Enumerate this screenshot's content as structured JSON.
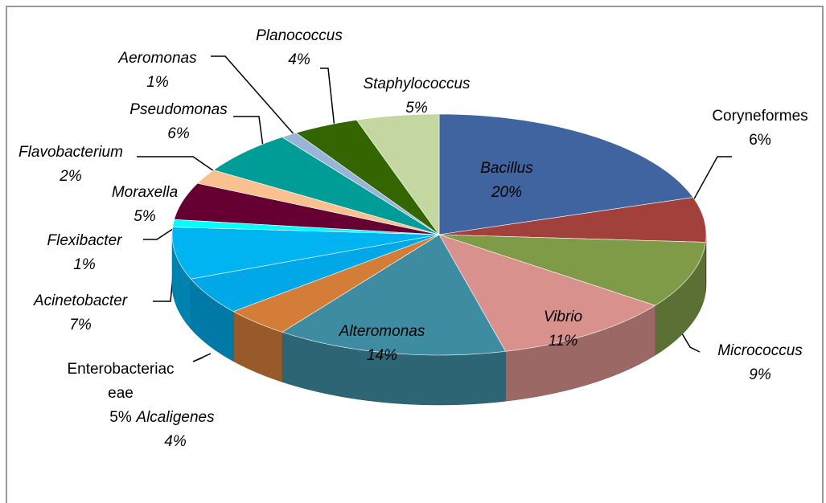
{
  "chart_data": {
    "type": "pie3d",
    "categories": [
      "Bacillus",
      "Coryneformes",
      "Micrococcus",
      "Vibrio",
      "Alteromonas",
      "Alcaligenes",
      "Enterobacteriac eae",
      "Acinetobacter",
      "Flexibacter",
      "Moraxella",
      "Flavobacterium",
      "Pseudomonas",
      "Aeromonas",
      "Planococcus",
      "Staphylococcus"
    ],
    "values": [
      20,
      6,
      9,
      11,
      14,
      4,
      5,
      7,
      1,
      5,
      2,
      6,
      1,
      4,
      5
    ],
    "value_labels": [
      "20%",
      "6%",
      "9%",
      "11%",
      "14%",
      "4%",
      "5%",
      "7%",
      "1%",
      "5%",
      "2%",
      "6%",
      "1%",
      "4%",
      "5%"
    ],
    "colors": [
      "#3f64a0",
      "#a2403c",
      "#7f9b48",
      "#d9918d",
      "#3e8ca2",
      "#d37d39",
      "#00a8e8",
      "#00b4f2",
      "#00ffff",
      "#660033",
      "#fac08f",
      "#009c98",
      "#99b4d9",
      "#336600",
      "#c4d7a0"
    ]
  }
}
